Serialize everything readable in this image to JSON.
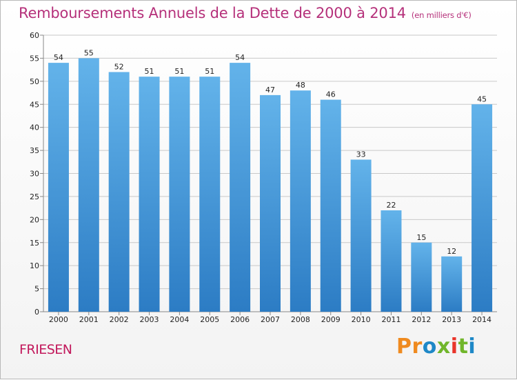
{
  "header": {
    "title": "Remboursements Annuels de la Dette de 2000 à 2014",
    "subtitle": "(en milliers d'€)"
  },
  "footer": {
    "town": "FRIESEN",
    "logo": {
      "p1": "Pr",
      "p2": "o",
      "p3": "x",
      "p4": "i",
      "p5": "t",
      "p6": "i"
    }
  },
  "colors": {
    "bar_top": "#63b3ea",
    "bar_bottom": "#2c7cc4",
    "title": "#b5307a",
    "grid": "#c8c8c8"
  },
  "chart_data": {
    "type": "bar",
    "categories": [
      "2000",
      "2001",
      "2002",
      "2003",
      "2004",
      "2005",
      "2006",
      "2007",
      "2008",
      "2009",
      "2010",
      "2011",
      "2012",
      "2013",
      "2014"
    ],
    "values": [
      54,
      55,
      52,
      51,
      51,
      51,
      54,
      47,
      48,
      46,
      33,
      22,
      15,
      12,
      45
    ],
    "ylim": [
      0,
      60
    ],
    "yticks": [
      0,
      5,
      10,
      15,
      20,
      25,
      30,
      35,
      40,
      45,
      50,
      55,
      60
    ],
    "grid": true,
    "title": "Remboursements Annuels de la Dette de 2000 à 2014",
    "ylabel": "",
    "xlabel": ""
  }
}
